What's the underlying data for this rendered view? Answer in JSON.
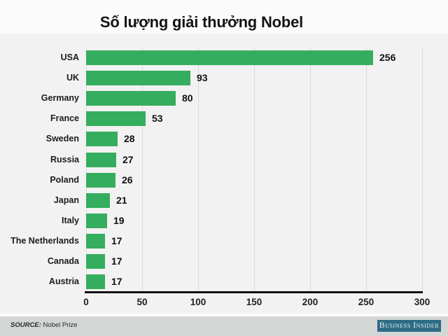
{
  "title": "Số lượng giải thưởng Nobel",
  "chart_data": {
    "type": "bar",
    "orientation": "horizontal",
    "title": "Số lượng giải thưởng Nobel",
    "categories": [
      "USA",
      "UK",
      "Germany",
      "France",
      "Sweden",
      "Russia",
      "Poland",
      "Japan",
      "Italy",
      "The Netherlands",
      "Canada",
      "Austria"
    ],
    "values": [
      256,
      93,
      80,
      53,
      28,
      27,
      26,
      21,
      19,
      17,
      17,
      17
    ],
    "xlabel": "",
    "ylabel": "",
    "xlim": [
      0,
      300
    ],
    "x_ticks": [
      0,
      50,
      100,
      150,
      200,
      250,
      300
    ],
    "grid": true,
    "legend": "none",
    "value_labels_shown": true,
    "bar_color": "#35ad5e",
    "plot_background": "#f2f2f2",
    "gridline_color": "#dcdcdc"
  },
  "footer": {
    "source_label": "SOURCE:",
    "source_value": "Nobel Prize",
    "brand": "Business Insider",
    "brand_color": "#2d6c87"
  }
}
